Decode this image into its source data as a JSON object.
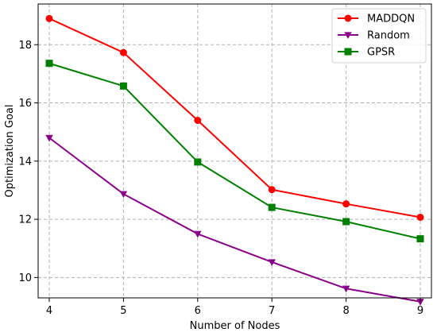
{
  "chart_data": {
    "type": "line",
    "xlabel": "Number of Nodes",
    "ylabel": "Optimization Goal",
    "x": [
      4,
      5,
      6,
      7,
      8,
      9
    ],
    "xlim": [
      3.85,
      9.15
    ],
    "ylim": [
      9.3,
      19.4
    ],
    "xticks": [
      "4",
      "5",
      "6",
      "7",
      "8",
      "9"
    ],
    "yticks": [
      "10",
      "12",
      "14",
      "16",
      "18"
    ],
    "grid": true,
    "legend_position": "top-right",
    "series": [
      {
        "name": "MADDQN",
        "color": "#ff0000",
        "marker": "circle",
        "values": [
          18.9,
          17.73,
          15.4,
          13.02,
          12.53,
          12.07
        ]
      },
      {
        "name": "Random",
        "color": "#8b008b",
        "marker": "triangle-down",
        "values": [
          14.8,
          12.87,
          11.5,
          10.53,
          9.62,
          9.17
        ]
      },
      {
        "name": "GPSR",
        "color": "#008000",
        "marker": "square",
        "values": [
          17.36,
          16.58,
          13.97,
          12.41,
          11.92,
          11.33
        ]
      }
    ]
  }
}
